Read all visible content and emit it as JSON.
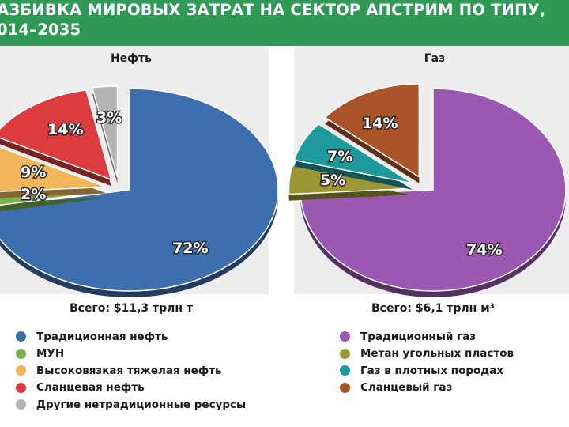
{
  "header": {
    "line1": "АЗБИВКА МИРОВЫХ ЗАТРАТ НА СЕКТОР АПСТРИМ ПО ТИПУ,",
    "line2": "014–2035"
  },
  "chart_data": [
    {
      "type": "pie",
      "title": "Нефть",
      "total": "Всего: $11,3 трлн т",
      "slices": [
        {
          "label": "Традиционная нефть",
          "value": 72,
          "display": "72%",
          "color": "#3d6fae"
        },
        {
          "label": "МУН",
          "value": 2,
          "display": "2%",
          "color": "#78b24a"
        },
        {
          "label": "Высоковязкая тяжелая нефть",
          "value": 9,
          "display": "9%",
          "color": "#f3b55c"
        },
        {
          "label": "Сланцевая нефть",
          "value": 14,
          "display": "14%",
          "color": "#dd3c3f"
        },
        {
          "label": "Другие нетрадиционные ресурсы",
          "value": 3,
          "display": "3%",
          "color": "#b3b3b3"
        }
      ]
    },
    {
      "type": "pie",
      "title": "Газ",
      "total": "Всего: $6,1 трлн м³",
      "slices": [
        {
          "label": "Традиционный газ",
          "value": 74,
          "display": "74%",
          "color": "#9a58b3"
        },
        {
          "label": "Метан угольных пластов",
          "value": 5,
          "display": "5%",
          "color": "#9b9734"
        },
        {
          "label": "Газ в плотных породах",
          "value": 7,
          "display": "7%",
          "color": "#1f9a9c"
        },
        {
          "label": "Сланцевый газ",
          "value": 14,
          "display": "14%",
          "color": "#ab542a"
        }
      ]
    }
  ]
}
